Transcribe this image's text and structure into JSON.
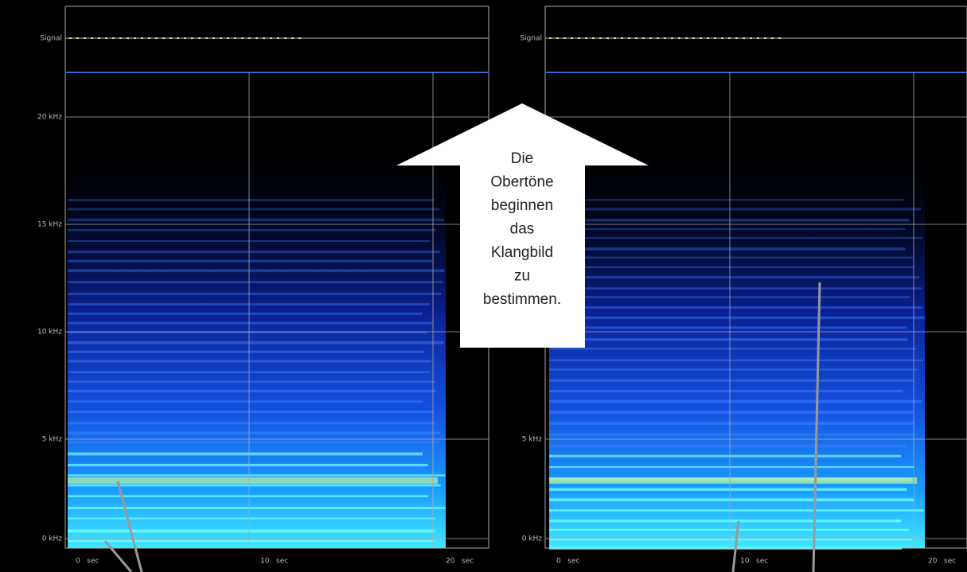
{
  "panels": [
    {
      "signal_label": "Signal",
      "y_labels": [
        "20 kHz",
        "15 kHz",
        "10 kHz",
        "5 kHz",
        "0 kHz"
      ],
      "x_labels": [
        "0   sec",
        "10   sec",
        "20   sec"
      ]
    },
    {
      "signal_label": "Signal",
      "y_labels": [
        "5 kHz",
        "0 kHz"
      ],
      "x_labels": [
        "0   sec",
        "10   sec",
        "20   sec"
      ]
    }
  ],
  "annotation": {
    "lines": [
      "Die",
      "Obertöne",
      "beginnen",
      "das",
      "Klangbild",
      "zu",
      "bestimmen."
    ]
  }
}
